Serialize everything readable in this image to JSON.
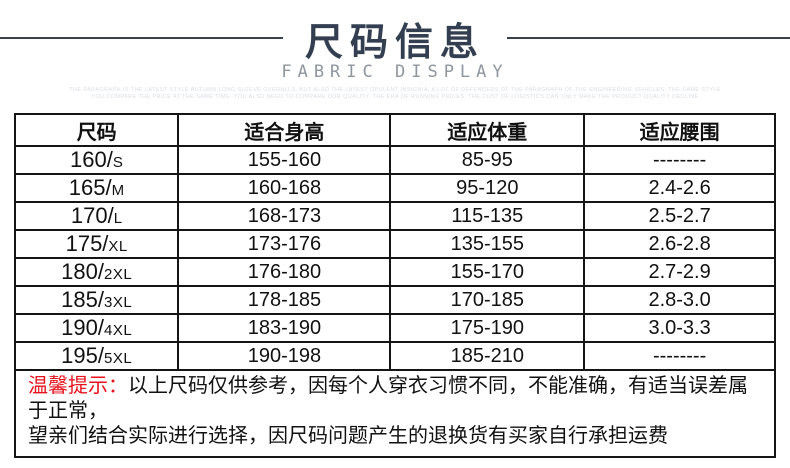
{
  "header": {
    "title": "尺码信息",
    "subtitle": "FABRIC DISPLAY",
    "fineprint_line1": "THE PARAGRAPH IS THE LATEST STYLE AUTUMN LONG SLEEVE OVERALLS, BUT ALSO THE LATEST OPULENT INSIGNIA, A LOT OF DEFENDERS OF THE PARAGRAPH OF THE ENGINEERING VEHICLES, THE SAME STYLE",
    "fineprint_line2": "YOU COMPARE THE PRICE AT THE SAME TIME, YOU ALSO NEED TO COMPARE OUR QUALITY, THE ERA OF RUNNING PRICES, THE COST OF LOGISTICS CAN ONLY MAKE THE PRODUCT QUALITY DECLINE"
  },
  "table": {
    "columns": [
      "尺码",
      "适合身高",
      "适应体重",
      "适应腰围"
    ],
    "rows": [
      {
        "size": "160/S",
        "height": "155-160",
        "weight": "85-95",
        "waist": "--------"
      },
      {
        "size": "165/M",
        "height": "160-168",
        "weight": "95-120",
        "waist": "2.4-2.6"
      },
      {
        "size": "170/L",
        "height": "168-173",
        "weight": "115-135",
        "waist": "2.5-2.7"
      },
      {
        "size": "175/XL",
        "height": "173-176",
        "weight": "135-155",
        "waist": "2.6-2.8"
      },
      {
        "size": "180/2XL",
        "height": "176-180",
        "weight": "155-170",
        "waist": "2.7-2.9"
      },
      {
        "size": "185/3XL",
        "height": "178-185",
        "weight": "170-185",
        "waist": "2.8-3.0"
      },
      {
        "size": "190/4XL",
        "height": "183-190",
        "weight": "175-190",
        "waist": "3.0-3.3"
      },
      {
        "size": "195/5XL",
        "height": "190-198",
        "weight": "185-210",
        "waist": "--------"
      }
    ]
  },
  "note": {
    "label": "温馨提示：",
    "line1": "以上尺码仅供参考，因每个人穿衣习惯不同，不能准确，有适当误差属于正常，",
    "line2": "望亲们结合实际进行选择，因尺码问题产生的退换货有买家自行承担运费"
  },
  "colors": {
    "title": "#333f50",
    "accent_red": "#e8121c",
    "border": "#151515",
    "subtitle_gray": "#8f969e"
  }
}
